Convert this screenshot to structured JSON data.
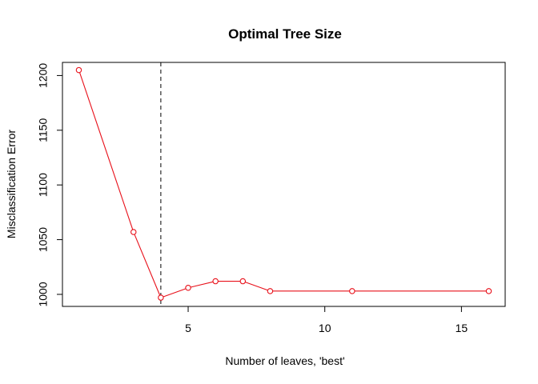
{
  "chart_data": {
    "type": "line",
    "title": "Optimal Tree Size",
    "xlabel": "Number of leaves, 'best'",
    "ylabel": "Misclassification Error",
    "x": [
      1,
      3,
      4,
      5,
      6,
      7,
      8,
      11,
      16
    ],
    "series": [
      {
        "values": [
          1205,
          1057,
          997,
          1006,
          1012,
          1012,
          1003,
          1003,
          1003
        ],
        "color": "#e8101a",
        "marker": "open-circle"
      }
    ],
    "xlim": [
      0.4,
      16.6
    ],
    "ylim": [
      989,
      1212
    ],
    "x_ticks": [
      5,
      10,
      15
    ],
    "y_ticks": [
      1000,
      1050,
      1100,
      1150,
      1200
    ],
    "vline": {
      "x": 4,
      "style": "dashed",
      "color": "#000000"
    },
    "grid": false,
    "legend": "none"
  }
}
